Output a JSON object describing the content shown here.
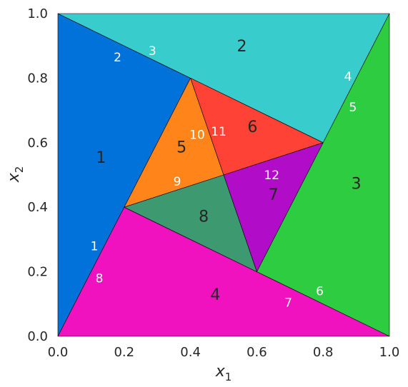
{
  "chart_data": {
    "type": "mesh",
    "xlim": [
      0.0,
      1.0
    ],
    "ylim": [
      0.0,
      1.0
    ],
    "grid": false,
    "xticks": [
      "0.0",
      "0.2",
      "0.4",
      "0.6",
      "0.8",
      "1.0"
    ],
    "yticks": [
      "0.0",
      "0.2",
      "0.4",
      "0.6",
      "0.8",
      "1.0"
    ],
    "xlabel": {
      "base": "x",
      "sub": "1"
    },
    "ylabel": {
      "base": "x",
      "sub": "2"
    },
    "regions": [
      {
        "label": "1",
        "color": "#0072d9",
        "vertices": [
          [
            0.0,
            0.0
          ],
          [
            0.0,
            1.0
          ],
          [
            0.4,
            0.8
          ],
          [
            0.2,
            0.4
          ]
        ],
        "label_pos": [
          0.13,
          0.555
        ]
      },
      {
        "label": "2",
        "color": "#39cccc",
        "vertices": [
          [
            0.0,
            1.0
          ],
          [
            1.0,
            1.0
          ],
          [
            0.8,
            0.6
          ],
          [
            0.4,
            0.8
          ]
        ],
        "label_pos": [
          0.555,
          0.9
        ]
      },
      {
        "label": "3",
        "color": "#2ecc40",
        "vertices": [
          [
            1.0,
            1.0
          ],
          [
            1.0,
            0.0
          ],
          [
            0.6,
            0.2
          ],
          [
            0.8,
            0.6
          ]
        ],
        "label_pos": [
          0.9,
          0.475
        ]
      },
      {
        "label": "4",
        "color": "#f012be",
        "vertices": [
          [
            0.0,
            0.0
          ],
          [
            1.0,
            0.0
          ],
          [
            0.6,
            0.2
          ],
          [
            0.2,
            0.4
          ]
        ],
        "label_pos": [
          0.475,
          0.13
        ]
      },
      {
        "label": "5",
        "color": "#ff851b",
        "vertices": [
          [
            0.4,
            0.8
          ],
          [
            0.2,
            0.4
          ],
          [
            0.5,
            0.5
          ]
        ],
        "label_pos": [
          0.373,
          0.587
        ]
      },
      {
        "label": "6",
        "color": "#ff4136",
        "vertices": [
          [
            0.4,
            0.8
          ],
          [
            0.8,
            0.6
          ],
          [
            0.5,
            0.5
          ]
        ],
        "label_pos": [
          0.587,
          0.65
        ]
      },
      {
        "label": "7",
        "color": "#b10dc9",
        "vertices": [
          [
            0.8,
            0.6
          ],
          [
            0.6,
            0.2
          ],
          [
            0.5,
            0.5
          ]
        ],
        "label_pos": [
          0.65,
          0.44
        ]
      },
      {
        "label": "8",
        "color": "#3d9970",
        "vertices": [
          [
            0.6,
            0.2
          ],
          [
            0.2,
            0.4
          ],
          [
            0.5,
            0.5
          ]
        ],
        "label_pos": [
          0.44,
          0.373
        ]
      }
    ],
    "edge_labels": [
      {
        "label": "1",
        "pos": [
          0.11,
          0.28
        ]
      },
      {
        "label": "2",
        "pos": [
          0.18,
          0.865
        ]
      },
      {
        "label": "3",
        "pos": [
          0.285,
          0.885
        ]
      },
      {
        "label": "4",
        "pos": [
          0.875,
          0.805
        ]
      },
      {
        "label": "5",
        "pos": [
          0.89,
          0.71
        ]
      },
      {
        "label": "6",
        "pos": [
          0.79,
          0.14
        ]
      },
      {
        "label": "7",
        "pos": [
          0.695,
          0.105
        ]
      },
      {
        "label": "8",
        "pos": [
          0.125,
          0.18
        ]
      },
      {
        "label": "9",
        "pos": [
          0.36,
          0.48
        ]
      },
      {
        "label": "10",
        "pos": [
          0.42,
          0.625
        ]
      },
      {
        "label": "11",
        "pos": [
          0.485,
          0.635
        ]
      },
      {
        "label": "12",
        "pos": [
          0.645,
          0.5
        ]
      }
    ]
  }
}
